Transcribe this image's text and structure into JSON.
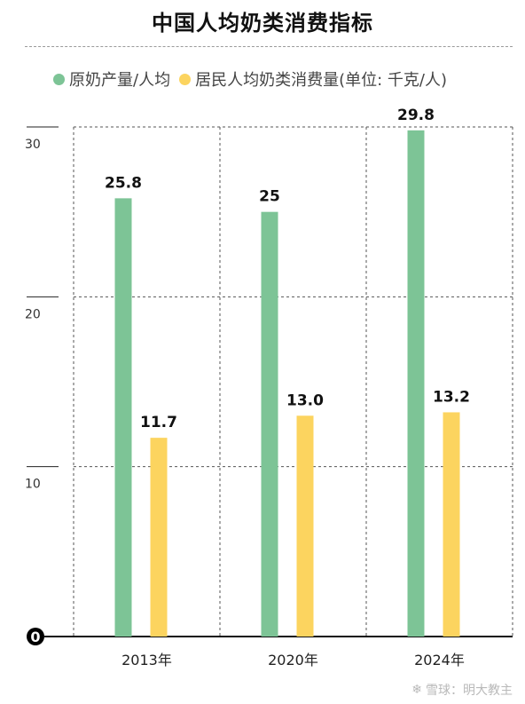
{
  "title": "中国人均奶类消费指标",
  "legend": {
    "raw_milk": "原奶产量/人均",
    "consumption": "居民人均奶类消费量(单位: 千克/人)"
  },
  "colors": {
    "raw_milk": "#7dc496",
    "consumption": "#fcd45f"
  },
  "watermark": {
    "logo_icon": "snowball-logo-icon",
    "text": "雪球：明大教主"
  },
  "chart_data": {
    "type": "bar",
    "title": "中国人均奶类消费指标",
    "categories": [
      "2013年",
      "2020年",
      "2024年"
    ],
    "series": [
      {
        "name": "原奶产量/人均",
        "values": [
          25.8,
          25,
          29.8
        ],
        "labels": [
          "25.8",
          "25",
          "29.8"
        ]
      },
      {
        "name": "居民人均奶类消费量(单位: 千克/人)",
        "values": [
          11.7,
          13.0,
          13.2
        ],
        "labels": [
          "11.7",
          "13.0",
          "13.2"
        ]
      }
    ],
    "ylim": [
      0,
      30
    ],
    "yticks": [
      {
        "value": 30,
        "label": "30"
      },
      {
        "value": 20,
        "label": "20"
      },
      {
        "value": 10,
        "label": "10"
      },
      {
        "value": 0,
        "label": "0"
      }
    ],
    "grid": true,
    "legend_position": "top",
    "xlabel": "",
    "ylabel": ""
  }
}
